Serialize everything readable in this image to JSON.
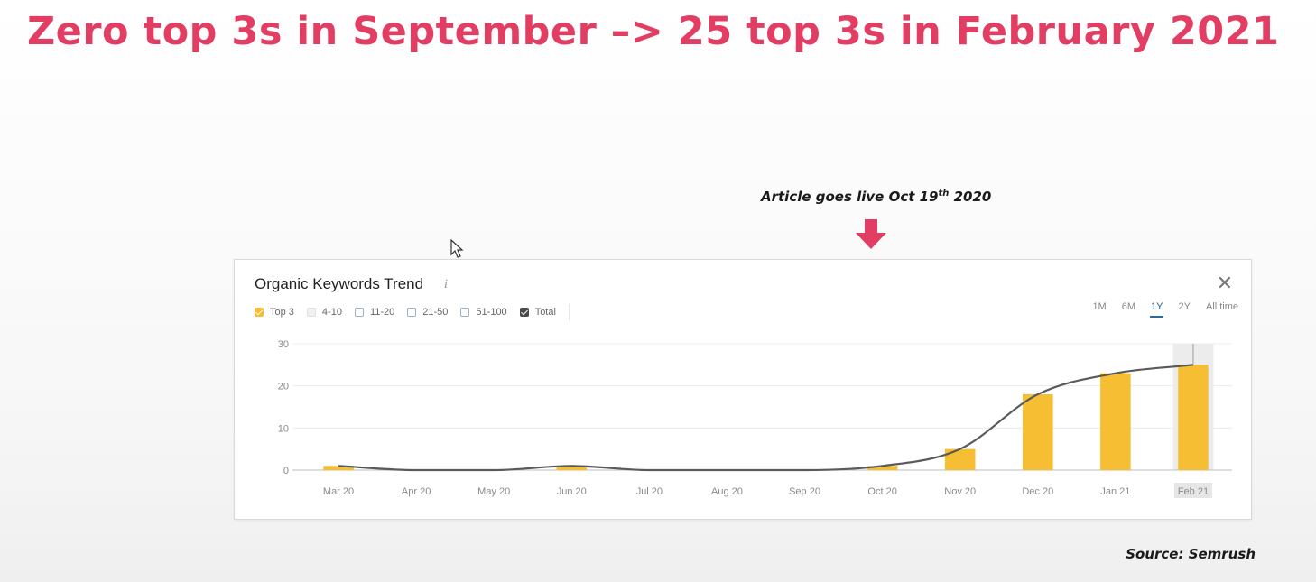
{
  "slide": {
    "headline": "Zero top 3s in September –> 25 top 3s in February 2021",
    "annotation_main": "Article goes live Oct 19",
    "annotation_sup": "th",
    "annotation_end": " 2020",
    "source": "Source: Semrush",
    "accent_color": "#e23e63"
  },
  "widget": {
    "title": "Organic Keywords Trend",
    "info_icon": "info-icon",
    "close_icon": "close-icon",
    "legend": [
      {
        "label": "Top 3",
        "checked": true,
        "color": "#f5be33"
      },
      {
        "label": "4-10",
        "checked": false,
        "color": "#f1f1f1"
      },
      {
        "label": "11-20",
        "checked": false,
        "color": "#ffffff"
      },
      {
        "label": "21-50",
        "checked": false,
        "color": "#ffffff"
      },
      {
        "label": "51-100",
        "checked": false,
        "color": "#ffffff"
      },
      {
        "label": "Total",
        "checked": true,
        "color": "#4a4a4a"
      }
    ],
    "ranges": [
      "1M",
      "6M",
      "1Y",
      "2Y",
      "All time"
    ],
    "active_range": "1Y"
  },
  "chart_data": {
    "type": "bar",
    "categories": [
      "Mar 20",
      "Apr 20",
      "May 20",
      "Jun 20",
      "Jul 20",
      "Aug 20",
      "Sep 20",
      "Oct 20",
      "Nov 20",
      "Dec 20",
      "Jan 21",
      "Feb 21"
    ],
    "series": [
      {
        "name": "Top 3",
        "type": "bar",
        "color": "#f5be33",
        "values": [
          1,
          0,
          0,
          1,
          0,
          0,
          0,
          1,
          5,
          18,
          23,
          25
        ]
      },
      {
        "name": "Total",
        "type": "line",
        "color": "#5a5a5a",
        "values": [
          1,
          0,
          0,
          1,
          0,
          0,
          0,
          1,
          5,
          18,
          23,
          25
        ]
      }
    ],
    "yticks": [
      0,
      10,
      20,
      30
    ],
    "ylim": [
      0,
      30
    ],
    "highlighted_category": "Feb 21",
    "grid": true
  }
}
